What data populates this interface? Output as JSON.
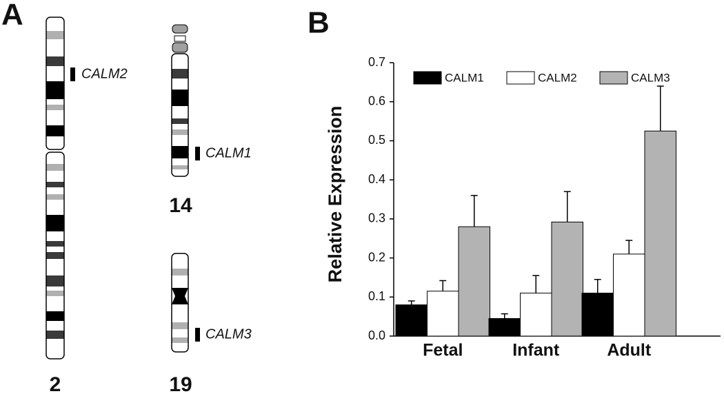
{
  "figure": {
    "panel_a": "A",
    "panel_b": "B",
    "chromosomes": [
      {
        "number": "2",
        "gene": "CALM2"
      },
      {
        "number": "14",
        "gene": "CALM1"
      },
      {
        "number": "19",
        "gene": "CALM3"
      }
    ]
  },
  "chart_data": {
    "type": "bar",
    "y_label": "Relative Expression",
    "categories": [
      "Fetal",
      "Infant",
      "Adult"
    ],
    "series": [
      {
        "name": "CALM1",
        "color": "#000000",
        "values": [
          0.08,
          0.045,
          0.11
        ],
        "errors": [
          0.01,
          0.012,
          0.035
        ]
      },
      {
        "name": "CALM2",
        "color": "#ffffff",
        "values": [
          0.115,
          0.11,
          0.21
        ],
        "errors": [
          0.027,
          0.045,
          0.035
        ]
      },
      {
        "name": "CALM3",
        "color": "#b3b3b3",
        "values": [
          0.28,
          0.292,
          0.525
        ],
        "errors": [
          0.08,
          0.078,
          0.115
        ]
      }
    ],
    "ylim": [
      0,
      0.7
    ],
    "yticks": [
      {
        "value": 0,
        "label": "0.0"
      },
      0.1,
      0.2,
      0.3,
      0.4,
      0.5,
      0.6,
      0.7
    ],
    "legend": "top"
  }
}
